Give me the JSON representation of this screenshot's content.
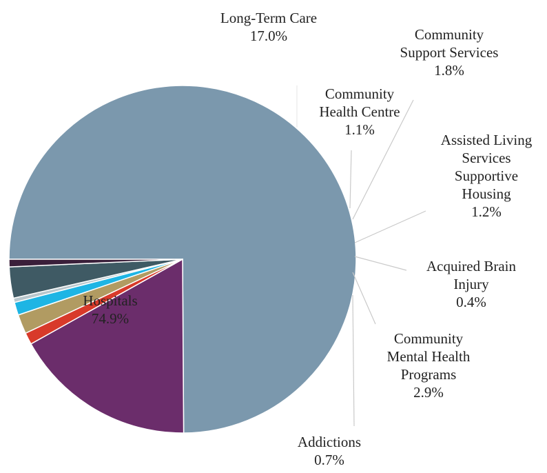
{
  "chart_data": {
    "type": "pie",
    "slices": [
      {
        "label": "Hospitals",
        "value_text": "74.9%",
        "value": 74.9,
        "color": "#7b98ad"
      },
      {
        "label": "Long-Term Care",
        "value_text": "17.0%",
        "value": 17.0,
        "color": "#6b2d6b"
      },
      {
        "label": "Community Health Centre",
        "value_text": "1.1%",
        "value": 1.1,
        "color": "#d83a2a"
      },
      {
        "label": "Community Support Services",
        "value_text": "1.8%",
        "value": 1.8,
        "color": "#b19b62"
      },
      {
        "label": "Assisted Living Services Supportive Housing",
        "value_text": "1.2%",
        "value": 1.2,
        "color": "#1eb5e4"
      },
      {
        "label": "Acquired Brain Injury",
        "value_text": "0.4%",
        "value": 0.4,
        "color": "#b8c6cc"
      },
      {
        "label": "Community Mental Health Programs",
        "value_text": "2.9%",
        "value": 2.9,
        "color": "#3f5a64"
      },
      {
        "label": "Addictions",
        "value_text": "0.7%",
        "value": 0.7,
        "color": "#3a1f3a"
      }
    ],
    "start_angle_deg": 180,
    "direction": "clockwise"
  }
}
